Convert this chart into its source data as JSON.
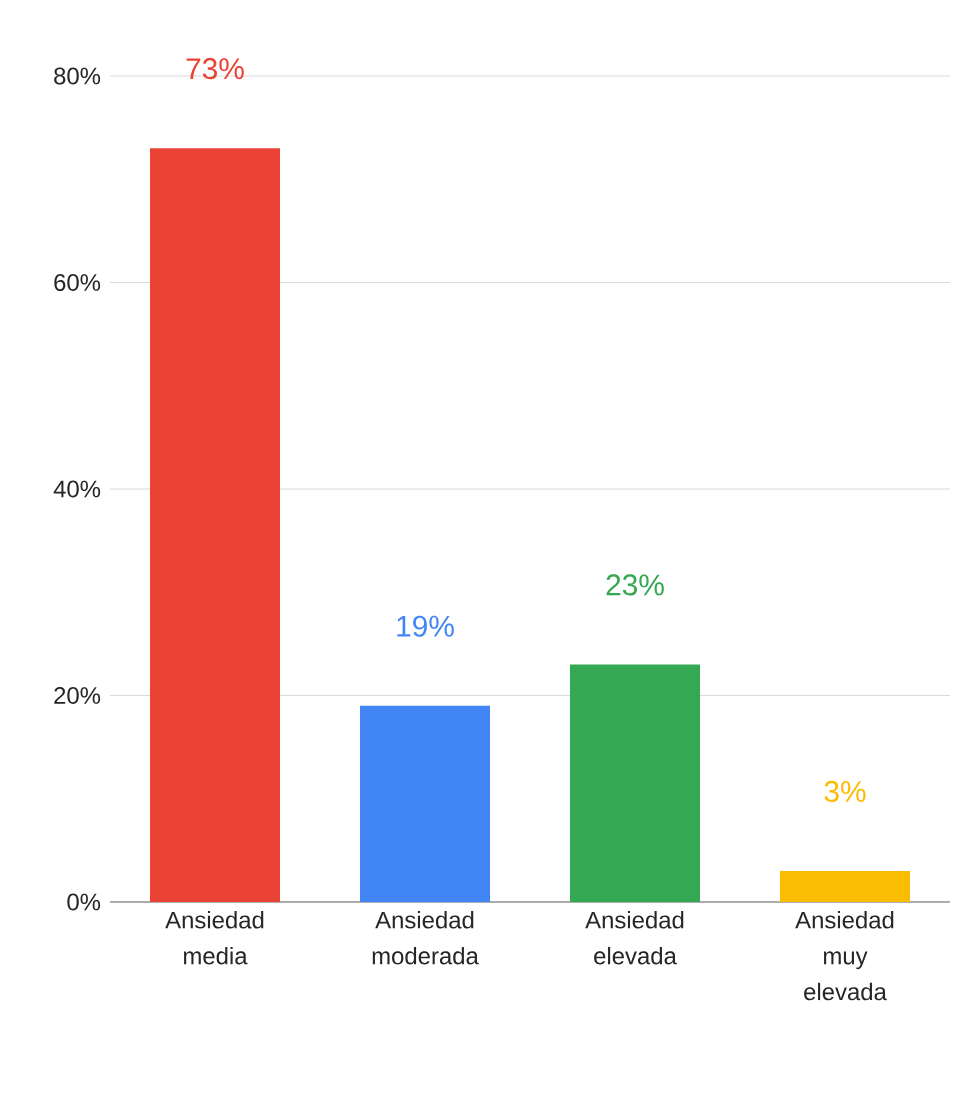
{
  "chart_data": {
    "type": "bar",
    "categories": [
      "Ansiedad media",
      "Ansiedad moderada",
      "Ansiedad elevada",
      "Ansiedad muy elevada"
    ],
    "values": [
      73,
      19,
      23,
      3
    ],
    "colors": [
      "#ea4335",
      "#4285f4",
      "#34a853",
      "#fbbc04"
    ],
    "value_labels": [
      "73%",
      "19%",
      "23%",
      "3%"
    ],
    "ylim": [
      0,
      80
    ],
    "yticks": [
      {
        "value": 0,
        "label": "0%"
      },
      {
        "value": 20,
        "label": "20%"
      },
      {
        "value": 40,
        "label": "40%"
      },
      {
        "value": 60,
        "label": "60%"
      },
      {
        "value": 80,
        "label": "80%"
      }
    ],
    "grid": "y"
  }
}
